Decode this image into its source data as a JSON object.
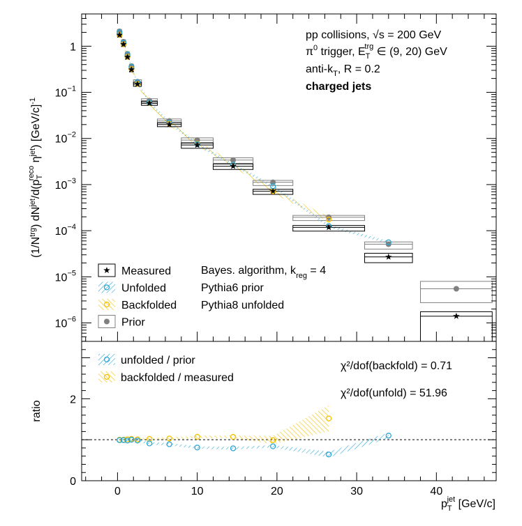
{
  "chart_data": [
    {
      "panel": "top",
      "type": "scatter",
      "y_scale": "log",
      "xlim": [
        -4.5,
        47.5
      ],
      "ylim_decades": [
        -6.4,
        0.7
      ],
      "ylabel_parts": {
        "a": "(1/N",
        "a_sup": "trg",
        "b": ") dN",
        "b_sup": "jet",
        "c": "/d(p",
        "c_sub": "T",
        "c_sup": "reco",
        "d": " η",
        "d_sup": "jet",
        "e": ") [GeV/c]",
        "e_sup": "-1"
      },
      "y_ticks": [
        {
          "exp": 0,
          "base": "1",
          "sup": ""
        },
        {
          "exp": -1,
          "base": "10",
          "sup": "−1"
        },
        {
          "exp": -2,
          "base": "10",
          "sup": "−2"
        },
        {
          "exp": -3,
          "base": "10",
          "sup": "−3"
        },
        {
          "exp": -4,
          "base": "10",
          "sup": "−4"
        },
        {
          "exp": -5,
          "base": "10",
          "sup": "−5"
        },
        {
          "exp": -6,
          "base": "10",
          "sup": "−6"
        }
      ],
      "annotations": {
        "line1": "pp collisions, √s = 200 GeV",
        "line2_a": "π",
        "line2_a_sup": "0",
        "line2_b": " trigger, E",
        "line2_b_sub": "T",
        "line2_b_sup": "trg",
        "line2_c": " ∈ (9, 20) GeV",
        "line3_a": "anti-k",
        "line3_a_sub": "T",
        "line3_b": ", R = 0.2",
        "line4": "charged jets",
        "algo_a": "Bayes. algorithm, k",
        "algo_sub": "reg",
        "algo_b": " = 4",
        "prior": "Pythia6 prior",
        "unfolded": "Pythia8 unfolded"
      },
      "legend": [
        {
          "name": "Measured",
          "color": "#000000"
        },
        {
          "name": "Unfolded",
          "color": "#29a6d6"
        },
        {
          "name": "Backfolded",
          "color": "#f5c000"
        },
        {
          "name": "Prior",
          "color": "#808080"
        }
      ],
      "series": [
        {
          "name": "Measured",
          "color": "#000000",
          "marker": "star",
          "x": [
            0.25,
            0.75,
            1.25,
            1.75,
            2.5,
            4,
            6.5,
            10,
            14.5,
            19.5,
            26.5,
            34,
            42.5
          ],
          "xerr": [
            0.25,
            0.25,
            0.25,
            0.25,
            0.5,
            1,
            1.5,
            2,
            2.5,
            2.5,
            4.5,
            3,
            4.5
          ],
          "y": [
            1.75,
            1.1,
            0.58,
            0.31,
            0.15,
            0.058,
            0.02,
            0.0072,
            0.0025,
            0.00072,
            0.000118,
            2.7e-05,
            1.4e-06
          ],
          "box_lo_frac": [
            0.9,
            0.9,
            0.9,
            0.9,
            0.9,
            0.9,
            0.9,
            0.85,
            0.85,
            0.85,
            0.83,
            0.75,
            0.12
          ],
          "box_hi_frac": [
            1.1,
            1.1,
            1.1,
            1.1,
            1.1,
            1.1,
            1.1,
            1.12,
            1.12,
            1.1,
            1.1,
            1.2,
            1.25
          ]
        },
        {
          "name": "Prior",
          "color": "#808080",
          "marker": "circle",
          "x": [
            0.25,
            0.75,
            1.25,
            1.75,
            2.5,
            4,
            6.5,
            10,
            14.5,
            19.5,
            26.5,
            34,
            42.5
          ],
          "xerr": [
            0.25,
            0.25,
            0.25,
            0.25,
            0.5,
            1,
            1.5,
            2,
            2.5,
            2.5,
            4.5,
            3,
            4.5
          ],
          "y": [
            2.1,
            1.25,
            0.68,
            0.37,
            0.17,
            0.066,
            0.024,
            0.0092,
            0.0034,
            0.00112,
            0.000195,
            5.1e-05,
            5.5e-06
          ],
          "box_lo_frac": [
            0.9,
            0.9,
            0.9,
            0.9,
            0.9,
            0.9,
            0.9,
            0.85,
            0.85,
            0.85,
            0.85,
            0.78,
            0.5
          ],
          "box_hi_frac": [
            1.1,
            1.1,
            1.1,
            1.1,
            1.1,
            1.1,
            1.1,
            1.12,
            1.12,
            1.1,
            1.1,
            1.12,
            1.45
          ]
        },
        {
          "name": "Unfolded",
          "color": "#29a6d6",
          "marker": "open-circle",
          "x": [
            0.25,
            0.75,
            1.25,
            1.75,
            2.5,
            4,
            6.5,
            10,
            14.5,
            19.5,
            26.5,
            34
          ],
          "y": [
            2.0,
            1.2,
            0.66,
            0.355,
            0.165,
            0.06,
            0.022,
            0.0075,
            0.0027,
            0.00092,
            0.000126,
            5.6e-05
          ]
        },
        {
          "name": "Backfolded",
          "color": "#f5c000",
          "marker": "open-circle",
          "x": [
            0.25,
            0.75,
            1.25,
            1.75,
            2.5,
            4,
            6.5,
            10,
            14.5,
            19.5,
            26.5
          ],
          "y": [
            1.75,
            1.1,
            0.59,
            0.32,
            0.152,
            0.059,
            0.021,
            0.0077,
            0.0027,
            0.00071,
            0.000175
          ]
        }
      ]
    },
    {
      "panel": "bottom",
      "type": "line",
      "xlim": [
        -4.5,
        47.5
      ],
      "ylim": [
        0,
        3.4
      ],
      "xlabel_a": "p",
      "xlabel_sub": "T",
      "xlabel_sup": "jet",
      "xlabel_b": " [GeV/c]",
      "ylabel": "ratio",
      "x_ticks": [
        "0",
        "10",
        "20",
        "30",
        "40"
      ],
      "x_tick_values": [
        0,
        10,
        20,
        30,
        40
      ],
      "y_ticks": [
        "0",
        "2"
      ],
      "y_tick_values": [
        0,
        2
      ],
      "reference_line": 1,
      "chi2_backfold": "χ²/dof(backfold) = 0.71",
      "chi2_unfold": "χ²/dof(unfold) = 51.96",
      "legend": [
        {
          "name": "unfolded / prior",
          "color": "#29a6d6"
        },
        {
          "name": "backfolded / measured",
          "color": "#f5c000"
        }
      ],
      "series": [
        {
          "name": "unfolded / prior",
          "color": "#29a6d6",
          "x": [
            0.25,
            0.75,
            1.25,
            1.75,
            2.5,
            4,
            6.5,
            10,
            14.5,
            19.5,
            26.5,
            34
          ],
          "y": [
            0.99,
            0.99,
            0.98,
            1.0,
            0.98,
            0.91,
            0.89,
            0.81,
            0.79,
            0.84,
            0.64,
            1.1
          ]
        },
        {
          "name": "backfolded / measured",
          "color": "#f5c000",
          "x": [
            0.25,
            0.75,
            1.25,
            1.75,
            2.5,
            4,
            6.5,
            10,
            14.5,
            19.5,
            26.5
          ],
          "y": [
            1.0,
            1.0,
            1.01,
            1.02,
            1.01,
            1.02,
            1.03,
            1.07,
            1.07,
            0.99,
            1.52
          ]
        }
      ]
    }
  ]
}
